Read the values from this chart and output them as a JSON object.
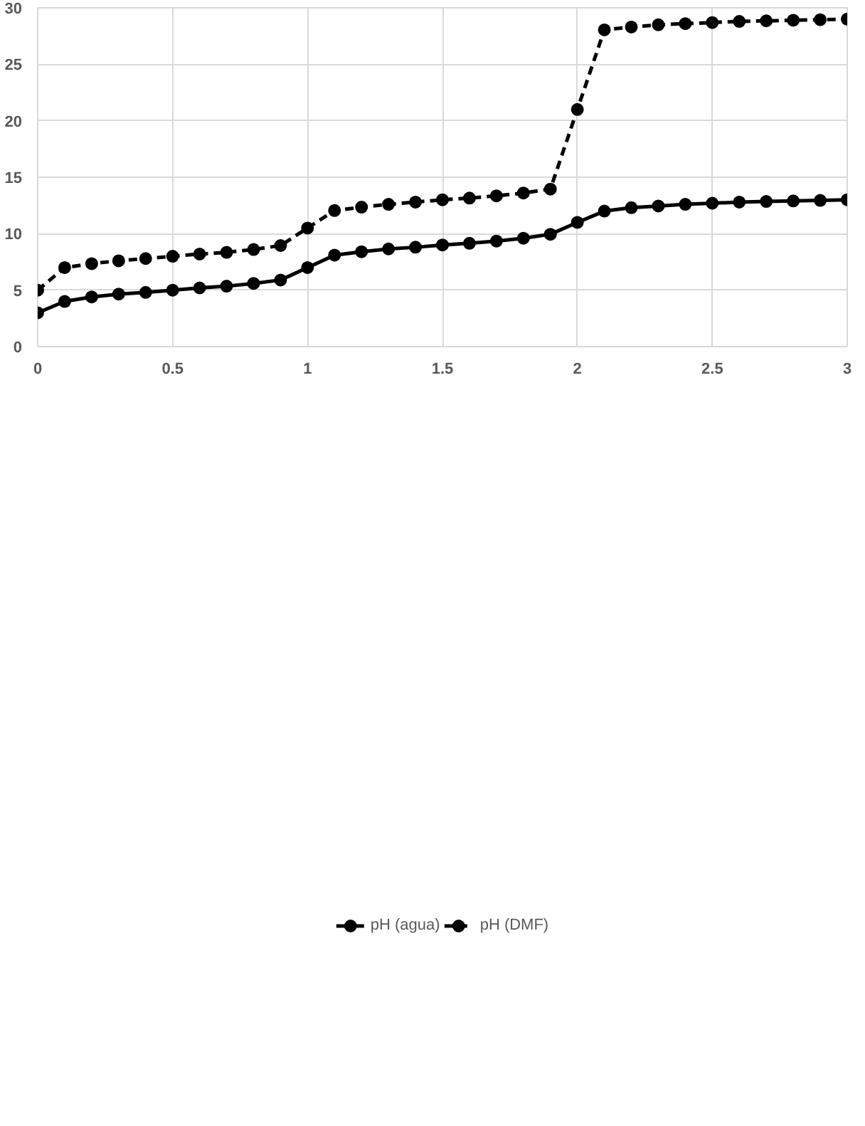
{
  "chart_data": {
    "type": "line",
    "x": [
      0,
      0.1,
      0.2,
      0.3,
      0.4,
      0.5,
      0.6,
      0.7,
      0.8,
      0.9,
      1,
      1.1,
      1.2,
      1.3,
      1.4,
      1.5,
      1.6,
      1.7,
      1.8,
      1.9,
      2,
      2.1,
      2.2,
      2.3,
      2.4,
      2.5,
      2.6,
      2.7,
      2.8,
      2.9,
      3
    ],
    "xlim": [
      0,
      3
    ],
    "xticks": [
      0,
      {
        "value": 0.5,
        "label": "0.5"
      },
      1,
      {
        "value": 1.5,
        "label": "1.5"
      },
      2,
      {
        "value": 2.5,
        "label": "2.5"
      },
      3
    ],
    "ylim": [
      0,
      30
    ],
    "yticks": [
      0,
      5,
      10,
      15,
      20,
      25,
      30
    ],
    "grid": true,
    "legend": "bottom",
    "marker": "circle",
    "series": [
      {
        "name": "pH (agua)",
        "color": "#000000",
        "line_style": "solid",
        "values": [
          3,
          4.0,
          4.4,
          4.65,
          4.8,
          5.0,
          5.2,
          5.35,
          5.6,
          5.9,
          7.0,
          8.1,
          8.4,
          8.65,
          8.8,
          9.0,
          9.15,
          9.35,
          9.6,
          9.95,
          11.0,
          12.0,
          12.3,
          12.45,
          12.6,
          12.7,
          12.8,
          12.85,
          12.9,
          12.95,
          13.0
        ]
      },
      {
        "name": "pH (DMF)",
        "color": "#000000",
        "line_style": "dashed",
        "values": [
          5,
          7.0,
          7.35,
          7.6,
          7.8,
          8.0,
          8.2,
          8.35,
          8.6,
          8.95,
          10.5,
          12.05,
          12.35,
          12.6,
          12.8,
          13.0,
          13.15,
          13.35,
          13.6,
          13.95,
          21.0,
          28.05,
          28.3,
          28.5,
          28.6,
          28.7,
          28.8,
          28.85,
          28.9,
          28.95,
          29.0
        ]
      }
    ]
  }
}
